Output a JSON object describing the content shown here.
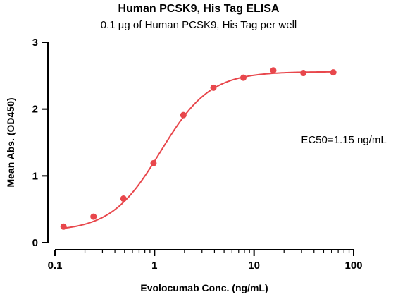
{
  "chart_data": {
    "type": "scatter",
    "title": "Human PCSK9, His Tag ELISA",
    "subtitle": "0.1 µg of Human PCSK9, His Tag per well",
    "xlabel": "Evolocumab Conc. (ng/mL)",
    "ylabel": "Mean Abs. (OD450)",
    "x_scale": "log",
    "xlim": [
      0.1,
      100
    ],
    "ylim": [
      0,
      3
    ],
    "x_ticks": [
      0.1,
      1,
      10,
      100
    ],
    "x_tick_labels": [
      "0.1",
      "1",
      "10",
      "100"
    ],
    "y_ticks": [
      0,
      1,
      2,
      3
    ],
    "y_tick_labels": [
      "0",
      "1",
      "2",
      "3"
    ],
    "grid": false,
    "color": "#e8474c",
    "annotation": "EC50=1.15 ng/mL",
    "series": [
      {
        "x": [
          0.122,
          0.244,
          0.488,
          0.977,
          1.95,
          3.91,
          7.81,
          15.6,
          31.3,
          62.5
        ],
        "y": [
          0.24,
          0.39,
          0.66,
          1.19,
          1.91,
          2.32,
          2.47,
          2.58,
          2.54,
          2.55
        ]
      }
    ],
    "fit": {
      "model": "4PL",
      "bottom": 0.17,
      "top": 2.56,
      "ec50": 1.15,
      "hill": 1.75
    }
  }
}
